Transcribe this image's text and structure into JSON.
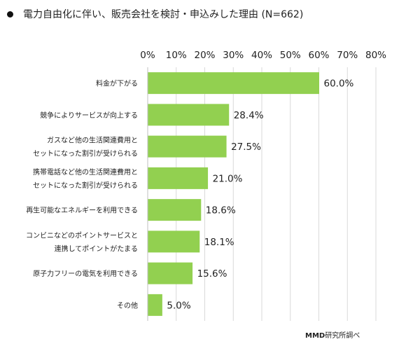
{
  "title": "電力自由化に伴い、販売会社を検討・申込みした理由 (N=662)",
  "source": {
    "brand": "MMD",
    "text": "研究所調べ"
  },
  "colors": {
    "bar": "#92d050",
    "grid": "#d9d9d9"
  },
  "chart_data": {
    "type": "bar",
    "orientation": "horizontal",
    "title": "電力自由化に伴い、販売会社を検討・申込みした理由 (N=662)",
    "xlabel": "",
    "ylabel": "",
    "xlim": [
      0,
      80
    ],
    "xticks": [
      0,
      10,
      20,
      30,
      40,
      50,
      60,
      70,
      80
    ],
    "xtick_labels": [
      "0%",
      "10%",
      "20%",
      "30%",
      "40%",
      "50%",
      "60%",
      "70%",
      "80%"
    ],
    "grid": true,
    "categories": [
      [
        "料金が下がる"
      ],
      [
        "競争によりサービスが向上する"
      ],
      [
        "ガスなど他の生活関連費用と",
        "セットになった割引が受けられる"
      ],
      [
        "携帯電話など他の生活関連費用と",
        "セットになった割引が受けられる"
      ],
      [
        "再生可能なエネルギーを利用できる"
      ],
      [
        "コンビニなどのポイントサービスと",
        "連携してポイントがたまる"
      ],
      [
        "原子力フリーの電気を利用できる"
      ],
      [
        "その他"
      ]
    ],
    "values": [
      60.0,
      28.4,
      27.5,
      21.0,
      18.6,
      18.1,
      15.6,
      5.0
    ],
    "value_labels": [
      "60.0%",
      "28.4%",
      "27.5%",
      "21.0%",
      "18.6%",
      "18.1%",
      "15.6%",
      "5.0%"
    ]
  }
}
